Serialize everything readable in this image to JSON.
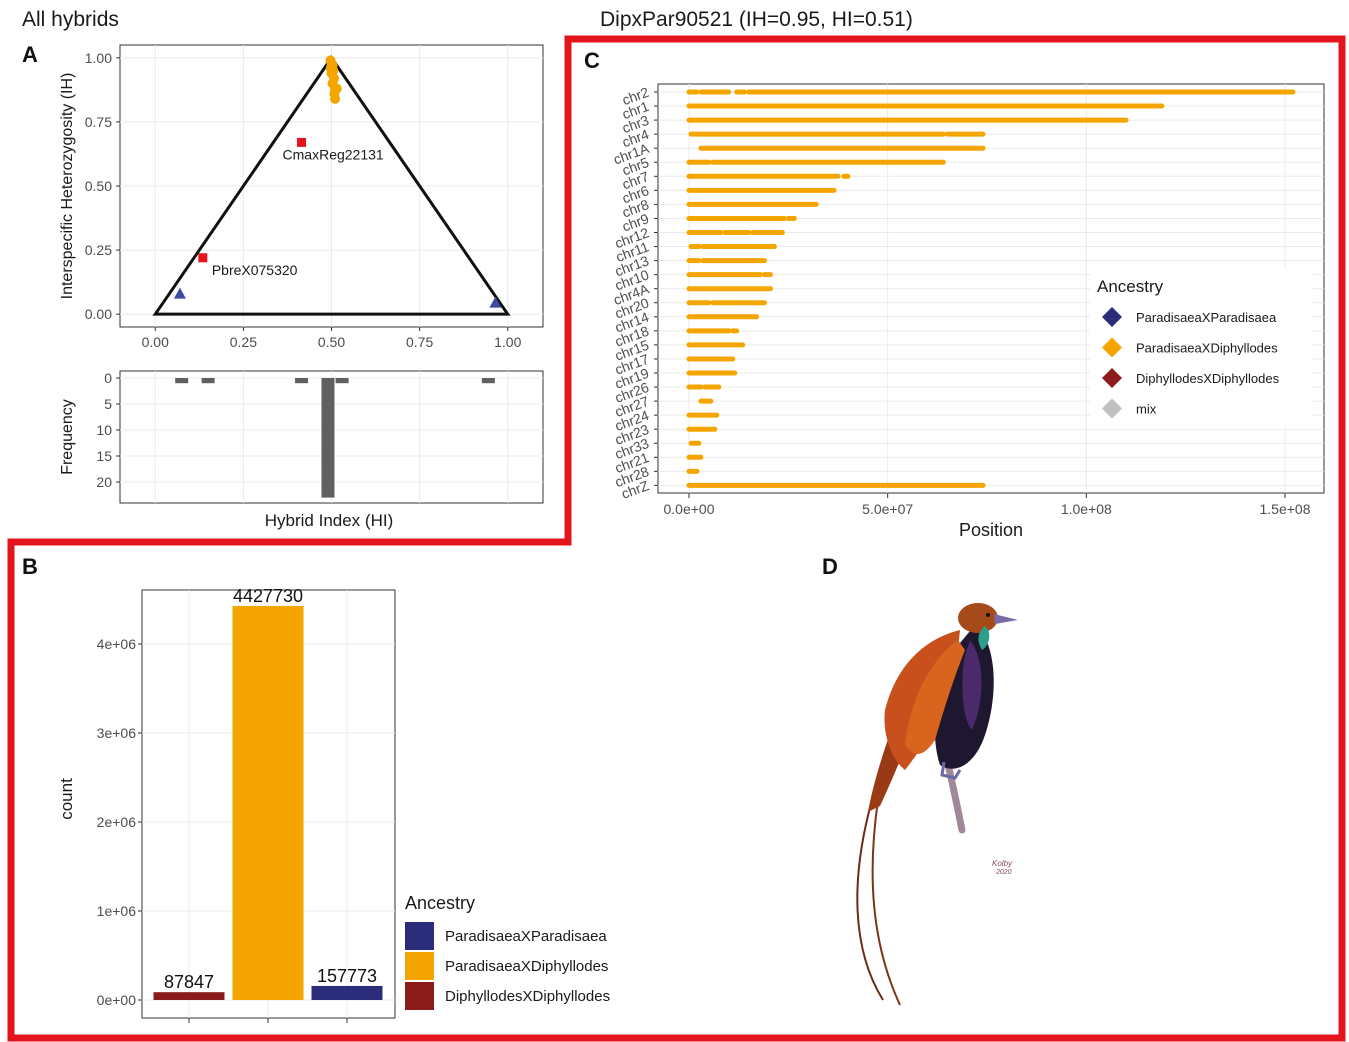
{
  "figure": {
    "left_title": "All hybrids",
    "right_title": "DipxPar90521 (IH=0.95, HI=0.51)",
    "highlight_color": "#e3141c",
    "panel_labels": {
      "a": "A",
      "b": "B",
      "c": "C",
      "d": "D"
    }
  },
  "colors": {
    "ParadisaeaXParadisaea": "#2b2d7a",
    "ParadisaeaXDiphyllodes": "#f5a500",
    "DiphyllodesXDiphyllodes": "#8b1a1a",
    "mix": "#c0c0c0",
    "triangle_square": "#e3141c",
    "triangle_point": "#3d4aa0",
    "histogram_bar": "#606060"
  },
  "chart_data": [
    {
      "id": "A_triangle",
      "type": "scatter",
      "title": "",
      "xlabel": "",
      "ylabel": "Interspecific Heterozygosity (IH)",
      "xlim": [
        -0.1,
        1.1
      ],
      "ylim": [
        -0.05,
        1.05
      ],
      "x_ticks": [
        "0.00",
        "0.25",
        "0.50",
        "0.75",
        "1.00"
      ],
      "y_ticks": [
        "0.00",
        "0.25",
        "0.50",
        "0.75",
        "1.00"
      ],
      "grid": true,
      "triangle_vertices": [
        [
          0,
          0
        ],
        [
          0.5,
          1
        ],
        [
          1,
          0
        ]
      ],
      "labeled_points": [
        {
          "label": "CmaxReg22131",
          "x": 0.415,
          "y": 0.67,
          "shape": "square"
        },
        {
          "label": "PbreX075320",
          "x": 0.135,
          "y": 0.22,
          "shape": "square"
        }
      ],
      "triangle_points": [
        {
          "x": 0.07,
          "y": 0.08
        },
        {
          "x": 0.965,
          "y": 0.045
        }
      ],
      "circle_points": [
        {
          "x": 0.497,
          "y": 0.99
        },
        {
          "x": 0.5,
          "y": 0.98
        },
        {
          "x": 0.503,
          "y": 0.97
        },
        {
          "x": 0.498,
          "y": 0.96
        },
        {
          "x": 0.505,
          "y": 0.95
        },
        {
          "x": 0.5,
          "y": 0.94
        },
        {
          "x": 0.507,
          "y": 0.92
        },
        {
          "x": 0.503,
          "y": 0.9
        },
        {
          "x": 0.51,
          "y": 0.88
        },
        {
          "x": 0.508,
          "y": 0.86
        },
        {
          "x": 0.515,
          "y": 0.88
        },
        {
          "x": 0.51,
          "y": 0.84
        }
      ]
    },
    {
      "id": "A_histogram",
      "type": "bar",
      "title": "",
      "xlabel": "Hybrid Index (HI)",
      "ylabel": "Frequency",
      "xlim": [
        -0.1,
        1.1
      ],
      "ylim": [
        0,
        23
      ],
      "y_ticks": [
        "0",
        "5",
        "10",
        "15",
        "20"
      ],
      "grid": true,
      "bins": [
        {
          "x": 0.075,
          "count": 1
        },
        {
          "x": 0.15,
          "count": 1
        },
        {
          "x": 0.415,
          "count": 1
        },
        {
          "x": 0.49,
          "count": 23
        },
        {
          "x": 0.53,
          "count": 1
        },
        {
          "x": 0.945,
          "count": 1
        }
      ]
    },
    {
      "id": "B_counts",
      "type": "bar",
      "title": "",
      "xlabel": "",
      "ylabel": "count",
      "ylim": [
        0,
        4500000
      ],
      "y_ticks": [
        "0e+00",
        "1e+06",
        "2e+06",
        "3e+06",
        "4e+06"
      ],
      "grid": true,
      "categories": [
        "DiphyllodesXDiphyllodes",
        "ParadisaeaXDiphyllodes",
        "ParadisaeaXParadisaea"
      ],
      "values": [
        87847,
        4427730,
        157773
      ],
      "data_labels": [
        "87847",
        "4427730",
        "157773"
      ],
      "legend": {
        "title": "Ancestry",
        "entries": [
          "ParadisaeaXParadisaea",
          "ParadisaeaXDiphyllodes",
          "DiphyllodesXDiphyllodes"
        ],
        "placement": "right"
      }
    },
    {
      "id": "C_chromosomes",
      "type": "scatter",
      "title": "",
      "xlabel": "Position",
      "ylabel": "",
      "xlim": [
        -5000000,
        160000000
      ],
      "x_ticks": [
        "0.0e+00",
        "5.0e+07",
        "1.0e+08",
        "1.5e+08"
      ],
      "grid": true,
      "chromosomes": [
        {
          "name": "chr2",
          "start": 0,
          "end": 152000000,
          "gaps": [
            [
              2000000,
              3000000
            ],
            [
              10000000,
              12000000
            ],
            [
              14000000,
              15000000
            ]
          ]
        },
        {
          "name": "chr1",
          "start": 0,
          "end": 119000000,
          "gaps": []
        },
        {
          "name": "chr3",
          "start": 0,
          "end": 110000000,
          "gaps": []
        },
        {
          "name": "chr4",
          "start": 500000,
          "end": 74000000,
          "gaps": [
            [
              64000000,
              65000000
            ]
          ]
        },
        {
          "name": "chr1A",
          "start": 3000000,
          "end": 74000000,
          "gaps": []
        },
        {
          "name": "chr5",
          "start": 0,
          "end": 64000000,
          "gaps": [
            [
              5000000,
              6000000
            ]
          ]
        },
        {
          "name": "chr7",
          "start": 0,
          "end": 40000000,
          "gaps": [
            [
              37500000,
              39000000
            ]
          ]
        },
        {
          "name": "chr6",
          "start": 0,
          "end": 36500000,
          "gaps": []
        },
        {
          "name": "chr8",
          "start": 0,
          "end": 32000000,
          "gaps": []
        },
        {
          "name": "chr9",
          "start": 0,
          "end": 26500000,
          "gaps": [
            [
              24000000,
              25000000
            ]
          ]
        },
        {
          "name": "chr12",
          "start": 0,
          "end": 23500000,
          "gaps": [
            [
              8000000,
              9000000
            ],
            [
              15000000,
              16000000
            ]
          ]
        },
        {
          "name": "chr11",
          "start": 500000,
          "end": 21500000,
          "gaps": [
            [
              2500000,
              3500000
            ]
          ]
        },
        {
          "name": "chr13",
          "start": 0,
          "end": 19000000,
          "gaps": [
            [
              2500000,
              3500000
            ]
          ]
        },
        {
          "name": "chr10",
          "start": 0,
          "end": 20500000,
          "gaps": [
            [
              18000000,
              19000000
            ]
          ]
        },
        {
          "name": "chr4A",
          "start": 0,
          "end": 20500000,
          "gaps": []
        },
        {
          "name": "chr20",
          "start": 0,
          "end": 19000000,
          "gaps": [
            [
              5000000,
              6000000
            ],
            [
              13000000,
              13500000
            ]
          ]
        },
        {
          "name": "chr14",
          "start": 0,
          "end": 17000000,
          "gaps": []
        },
        {
          "name": "chr18",
          "start": 0,
          "end": 12000000,
          "gaps": [
            [
              10000000,
              11000000
            ]
          ]
        },
        {
          "name": "chr15",
          "start": 0,
          "end": 13500000,
          "gaps": []
        },
        {
          "name": "chr17",
          "start": 0,
          "end": 11000000,
          "gaps": []
        },
        {
          "name": "chr19",
          "start": 0,
          "end": 11500000,
          "gaps": []
        },
        {
          "name": "chr26",
          "start": 0,
          "end": 7500000,
          "gaps": [
            [
              3000000,
              4000000
            ]
          ]
        },
        {
          "name": "chr27",
          "start": 3000000,
          "end": 5500000,
          "gaps": []
        },
        {
          "name": "chr24",
          "start": 0,
          "end": 7000000,
          "gaps": []
        },
        {
          "name": "chr23",
          "start": 0,
          "end": 6500000,
          "gaps": []
        },
        {
          "name": "chr33",
          "start": 500000,
          "end": 2500000,
          "gaps": []
        },
        {
          "name": "chr21",
          "start": 0,
          "end": 3000000,
          "gaps": []
        },
        {
          "name": "chr28",
          "start": 0,
          "end": 2000000,
          "gaps": []
        },
        {
          "name": "chrZ",
          "start": 0,
          "end": 74000000,
          "gaps": []
        }
      ],
      "legend": {
        "title": "Ancestry",
        "entries": [
          "ParadisaeaXParadisaea",
          "ParadisaeaXDiphyllodes",
          "DiphyllodesXDiphyllodes",
          "mix"
        ],
        "placement": "inside-right"
      }
    }
  ],
  "illustration": {
    "signature": "Kolby 2020"
  }
}
